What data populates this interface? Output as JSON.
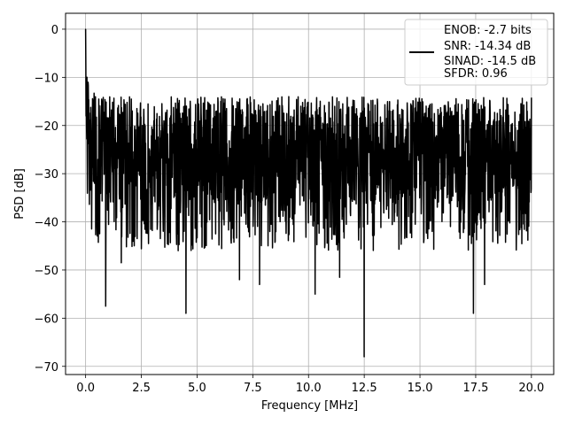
{
  "chart_data": {
    "type": "line",
    "title": "",
    "xlabel": "Frequency [MHz]",
    "ylabel": "PSD [dB]",
    "xlim": [
      -0.9,
      21.0
    ],
    "ylim": [
      -71.7,
      3.3
    ],
    "x_ticks": [
      0.0,
      2.5,
      5.0,
      7.5,
      10.0,
      12.5,
      15.0,
      17.5,
      20.0
    ],
    "x_tick_labels": [
      "0.0",
      "2.5",
      "5.0",
      "7.5",
      "10.0",
      "12.5",
      "15.0",
      "17.5",
      "20.0"
    ],
    "y_ticks": [
      0,
      -10,
      -20,
      -30,
      -40,
      -50,
      -60,
      -70
    ],
    "y_tick_labels": [
      "0",
      "−10",
      "−20",
      "−30",
      "−40",
      "−50",
      "−60",
      "−70"
    ],
    "grid": true,
    "legend_position": "top-right",
    "series_color": "#000000",
    "legend": {
      "lines": [
        "ENOB: -2.7 bits",
        "SNR: -14.34 dB",
        "SINAD: -14.5 dB",
        "SFDR: 0.96"
      ]
    },
    "series": [
      {
        "x_range": [
          0.0,
          20.0
        ],
        "num_points": 2000,
        "noise_floor_db": -27,
        "peak_ceiling_db": -14,
        "dc_peak": {
          "x": 0.0,
          "y": 0.0
        },
        "notable_dips": [
          {
            "x": 0.9,
            "y": -57.5
          },
          {
            "x": 1.6,
            "y": -48.5
          },
          {
            "x": 4.5,
            "y": -59.0
          },
          {
            "x": 6.9,
            "y": -52.0
          },
          {
            "x": 7.8,
            "y": -53.0
          },
          {
            "x": 10.3,
            "y": -55.0
          },
          {
            "x": 11.4,
            "y": -51.5
          },
          {
            "x": 12.5,
            "y": -68.0
          },
          {
            "x": 17.4,
            "y": -59.0
          },
          {
            "x": 17.9,
            "y": -53.0
          }
        ]
      }
    ]
  }
}
